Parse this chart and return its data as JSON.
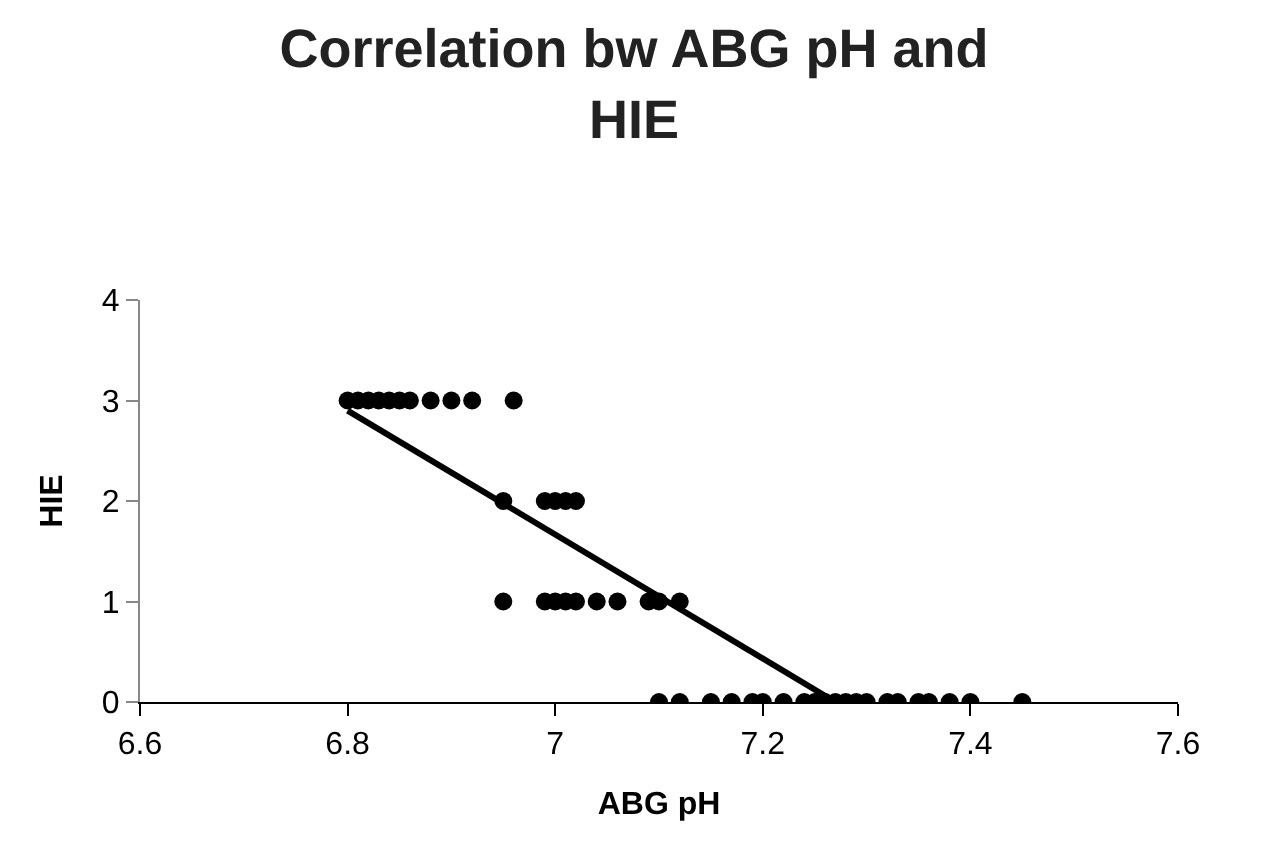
{
  "chart_data": {
    "type": "scatter",
    "title": "Correlation bw ABG pH and HIE",
    "xlabel": "ABG pH",
    "ylabel": "HIE",
    "xlim": [
      6.6,
      7.6
    ],
    "xticks": [
      6.6,
      6.8,
      7,
      7.2,
      7.4,
      7.6
    ],
    "ylim": [
      0,
      4
    ],
    "yticks": [
      0,
      1,
      2,
      3,
      4
    ],
    "grid": false,
    "marker": "circle",
    "series": [
      {
        "color": "#000000",
        "x": [
          6.8,
          6.81,
          6.82,
          6.83,
          6.84,
          6.85,
          6.86,
          6.88,
          6.9,
          6.92,
          6.96,
          6.95,
          6.99,
          7.0,
          7.01,
          7.02,
          6.95,
          6.99,
          7.0,
          7.01,
          7.02,
          7.04,
          7.06,
          7.09,
          7.1,
          7.12,
          7.1,
          7.12,
          7.15,
          7.17,
          7.19,
          7.2,
          7.22,
          7.24,
          7.25,
          7.26,
          7.27,
          7.28,
          7.29,
          7.3,
          7.32,
          7.33,
          7.35,
          7.36,
          7.38,
          7.4,
          7.45
        ],
        "values": [
          3,
          3,
          3,
          3,
          3,
          3,
          3,
          3,
          3,
          3,
          3,
          2,
          2,
          2,
          2,
          2,
          1,
          1,
          1,
          1,
          1,
          1,
          1,
          1,
          1,
          1,
          0,
          0,
          0,
          0,
          0,
          0,
          0,
          0,
          0,
          0,
          0,
          0,
          0,
          0,
          0,
          0,
          0,
          0,
          0,
          0,
          0
        ]
      },
      {
        "type": "line",
        "color": "#000000",
        "marker": "none",
        "x": [
          6.8,
          7.27
        ],
        "values": [
          2.9,
          0
        ]
      }
    ]
  }
}
